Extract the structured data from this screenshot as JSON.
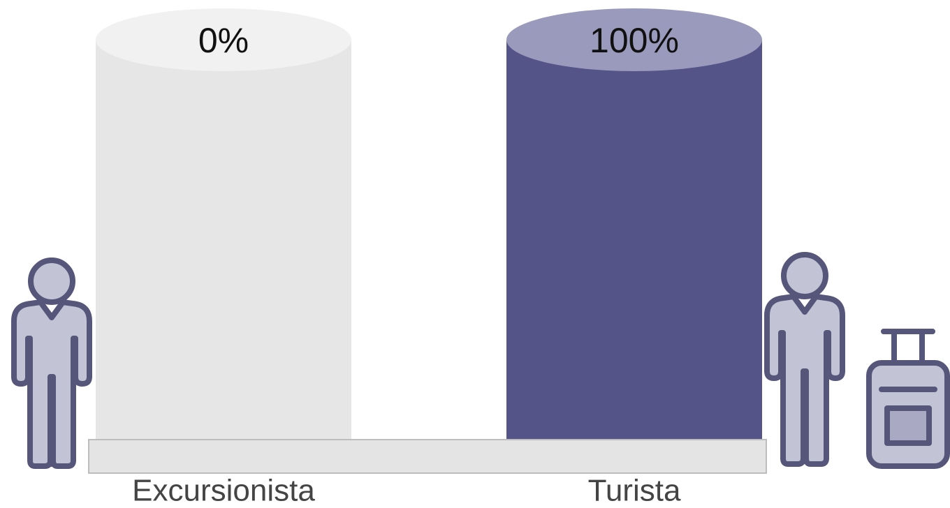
{
  "chart_data": {
    "type": "cylinder",
    "categories": [
      "Excursionista",
      "Turista"
    ],
    "values": [
      0,
      100
    ],
    "value_labels": [
      "0%",
      "100%"
    ],
    "ylim": [
      0,
      100
    ],
    "color": "#545488",
    "cap_color": "#9a9abd",
    "track_color": "#e6e6e6",
    "track_cap_color": "#f1f1f1"
  }
}
